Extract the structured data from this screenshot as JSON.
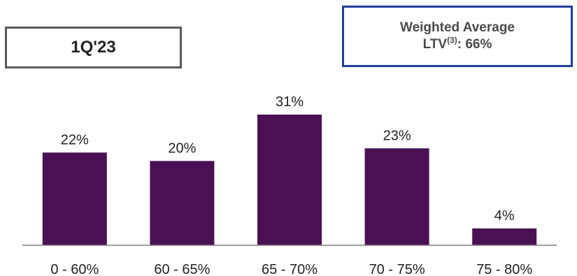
{
  "period_label": "1Q'23",
  "weighted_average": {
    "line1": "Weighted Average",
    "line2_prefix": "LTV",
    "line2_sup": "(3)",
    "line2_suffix": ": 66%"
  },
  "chart_data": {
    "type": "bar",
    "title": "",
    "xlabel": "",
    "ylabel": "",
    "categories": [
      "0 - 60%",
      "60 - 65%",
      "65 - 70%",
      "70 - 75%",
      "75 - 80%"
    ],
    "values": [
      22,
      20,
      31,
      23,
      4
    ],
    "data_labels": [
      "22%",
      "20%",
      "31%",
      "23%",
      "4%"
    ],
    "ylim": [
      0,
      31
    ],
    "grid": false,
    "legend": "none",
    "bar_color": "#4a1054",
    "axis_color": "#7f7f7f"
  }
}
